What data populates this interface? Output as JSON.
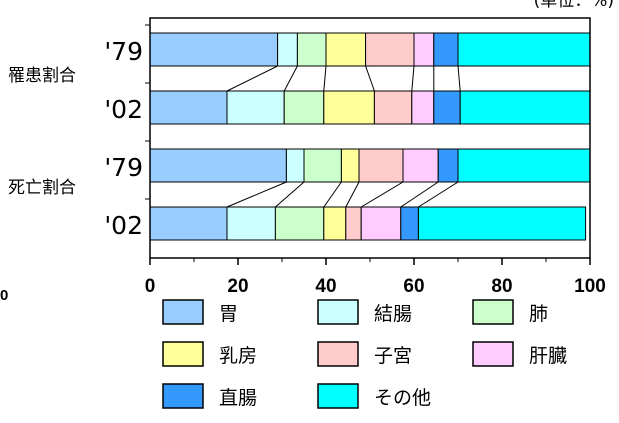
{
  "chart_data": {
    "type": "bar",
    "orientation": "horizontal",
    "stacked": true,
    "unit_note": "(単位：%)",
    "groups": [
      {
        "label": "罹患割合",
        "bars": [
          "'79",
          "'02"
        ]
      },
      {
        "label": "死亡割合",
        "bars": [
          "'79",
          "'02"
        ]
      }
    ],
    "categories": [
      "'79",
      "'02",
      "'79",
      "'02"
    ],
    "series": [
      {
        "name": "胃",
        "color": "#99ccff",
        "values": [
          29.0,
          17.5,
          31.0,
          17.5
        ]
      },
      {
        "name": "結腸",
        "color": "#ccffff",
        "values": [
          4.5,
          13.0,
          4.0,
          11.0
        ]
      },
      {
        "name": "肺",
        "color": "#ccffcc",
        "values": [
          6.5,
          9.0,
          8.5,
          11.0
        ]
      },
      {
        "name": "乳房",
        "color": "#ffff99",
        "values": [
          9.0,
          11.5,
          4.0,
          5.0
        ]
      },
      {
        "name": "子宮",
        "color": "#ffcccc",
        "values": [
          11.0,
          8.5,
          10.0,
          3.5
        ]
      },
      {
        "name": "肝臓",
        "color": "#ffccff",
        "values": [
          4.5,
          5.0,
          8.0,
          9.0
        ]
      },
      {
        "name": "直腸",
        "color": "#3399ff",
        "values": [
          5.5,
          6.0,
          4.5,
          4.0
        ]
      },
      {
        "name": "その他",
        "color": "#00ffff",
        "values": [
          30.0,
          29.5,
          30.0,
          38.0
        ]
      }
    ],
    "xlim": [
      0,
      100
    ],
    "xticks": [
      "0",
      "20",
      "40",
      "60",
      "80",
      "100"
    ],
    "stray_label": "0",
    "legend": {
      "position": "bottom",
      "columns": 3
    },
    "grid": false
  }
}
